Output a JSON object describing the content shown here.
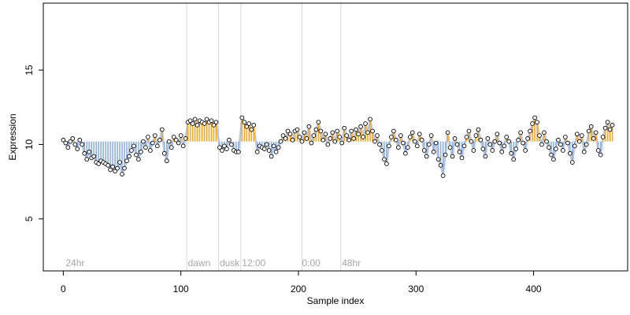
{
  "chart_data": {
    "type": "scatter",
    "title": "",
    "xlabel": "Sample index",
    "ylabel": "Expression",
    "xlim": [
      -17,
      480
    ],
    "ylim": [
      1.5,
      19.5
    ],
    "x_ticks": [
      0,
      100,
      200,
      300,
      400
    ],
    "y_ticks": [
      5,
      10,
      15
    ],
    "baseline": 10.2,
    "grid": false,
    "legend": "none",
    "annotations": [
      {
        "label": "24hr",
        "x": 2
      },
      {
        "label": "dawn",
        "x": 106
      },
      {
        "label": "dusk",
        "x": 133
      },
      {
        "label": "12:00",
        "x": 152
      },
      {
        "label": "0:00",
        "x": 203
      },
      {
        "label": "48hr",
        "x": 237
      }
    ],
    "vlines": [
      105,
      132,
      151,
      203,
      236
    ],
    "colors": {
      "above_baseline": "#f5a623",
      "below_baseline": "#8fb0e0",
      "fit_line": "#a9b6cc",
      "vline": "#d9d9d9",
      "point_edge": "#000000",
      "point_fill": "#ffffff"
    },
    "series": [
      {
        "values": [
          {
            "x": 0,
            "y": 10.3
          },
          {
            "x": 2,
            "y": 10.1
          },
          {
            "x": 4,
            "y": 9.8
          },
          {
            "x": 6,
            "y": 10.2
          },
          {
            "x": 8,
            "y": 10.4
          },
          {
            "x": 10,
            "y": 10.0
          },
          {
            "x": 12,
            "y": 9.7
          },
          {
            "x": 14,
            "y": 10.3
          },
          {
            "x": 16,
            "y": 10.0
          },
          {
            "x": 18,
            "y": 9.4
          },
          {
            "x": 20,
            "y": 9.0
          },
          {
            "x": 22,
            "y": 9.5
          },
          {
            "x": 24,
            "y": 9.1
          },
          {
            "x": 26,
            "y": 9.2
          },
          {
            "x": 28,
            "y": 8.8
          },
          {
            "x": 30,
            "y": 8.7
          },
          {
            "x": 32,
            "y": 8.9
          },
          {
            "x": 34,
            "y": 8.8
          },
          {
            "x": 36,
            "y": 8.7
          },
          {
            "x": 38,
            "y": 8.6
          },
          {
            "x": 40,
            "y": 8.3
          },
          {
            "x": 42,
            "y": 8.5
          },
          {
            "x": 44,
            "y": 8.2
          },
          {
            "x": 46,
            "y": 8.4
          },
          {
            "x": 48,
            "y": 8.8
          },
          {
            "x": 50,
            "y": 8.0
          },
          {
            "x": 52,
            "y": 8.4
          },
          {
            "x": 54,
            "y": 8.9
          },
          {
            "x": 56,
            "y": 9.2
          },
          {
            "x": 58,
            "y": 9.6
          },
          {
            "x": 60,
            "y": 9.9
          },
          {
            "x": 62,
            "y": 9.3
          },
          {
            "x": 64,
            "y": 9.0
          },
          {
            "x": 66,
            "y": 9.5
          },
          {
            "x": 68,
            "y": 10.2
          },
          {
            "x": 70,
            "y": 9.8
          },
          {
            "x": 72,
            "y": 10.5
          },
          {
            "x": 74,
            "y": 9.6
          },
          {
            "x": 76,
            "y": 10.1
          },
          {
            "x": 78,
            "y": 10.6
          },
          {
            "x": 80,
            "y": 9.9
          },
          {
            "x": 82,
            "y": 10.3
          },
          {
            "x": 84,
            "y": 11.0
          },
          {
            "x": 86,
            "y": 9.4
          },
          {
            "x": 88,
            "y": 8.9
          },
          {
            "x": 90,
            "y": 10.2
          },
          {
            "x": 92,
            "y": 9.8
          },
          {
            "x": 94,
            "y": 10.5
          },
          {
            "x": 96,
            "y": 10.3
          },
          {
            "x": 98,
            "y": 10.1
          },
          {
            "x": 100,
            "y": 10.6
          },
          {
            "x": 102,
            "y": 9.9
          },
          {
            "x": 104,
            "y": 10.4
          },
          {
            "x": 106,
            "y": 11.5
          },
          {
            "x": 108,
            "y": 11.6
          },
          {
            "x": 110,
            "y": 11.4
          },
          {
            "x": 112,
            "y": 11.7
          },
          {
            "x": 114,
            "y": 11.3
          },
          {
            "x": 116,
            "y": 11.6
          },
          {
            "x": 118,
            "y": 11.5
          },
          {
            "x": 120,
            "y": 11.4
          },
          {
            "x": 122,
            "y": 11.7
          },
          {
            "x": 124,
            "y": 11.5
          },
          {
            "x": 126,
            "y": 11.6
          },
          {
            "x": 128,
            "y": 11.3
          },
          {
            "x": 130,
            "y": 11.5
          },
          {
            "x": 133,
            "y": 9.8
          },
          {
            "x": 135,
            "y": 9.6
          },
          {
            "x": 137,
            "y": 9.9
          },
          {
            "x": 139,
            "y": 9.7
          },
          {
            "x": 141,
            "y": 10.3
          },
          {
            "x": 143,
            "y": 10.0
          },
          {
            "x": 145,
            "y": 9.6
          },
          {
            "x": 147,
            "y": 9.5
          },
          {
            "x": 149,
            "y": 9.5
          },
          {
            "x": 152,
            "y": 11.8
          },
          {
            "x": 154,
            "y": 11.5
          },
          {
            "x": 156,
            "y": 11.2
          },
          {
            "x": 158,
            "y": 11.4
          },
          {
            "x": 160,
            "y": 11.0
          },
          {
            "x": 162,
            "y": 11.3
          },
          {
            "x": 165,
            "y": 9.5
          },
          {
            "x": 167,
            "y": 9.9
          },
          {
            "x": 169,
            "y": 9.8
          },
          {
            "x": 171,
            "y": 9.7
          },
          {
            "x": 173,
            "y": 10.0
          },
          {
            "x": 175,
            "y": 9.6
          },
          {
            "x": 177,
            "y": 9.2
          },
          {
            "x": 179,
            "y": 9.9
          },
          {
            "x": 181,
            "y": 9.5
          },
          {
            "x": 183,
            "y": 9.8
          },
          {
            "x": 185,
            "y": 10.2
          },
          {
            "x": 187,
            "y": 10.6
          },
          {
            "x": 189,
            "y": 10.4
          },
          {
            "x": 191,
            "y": 10.9
          },
          {
            "x": 193,
            "y": 10.7
          },
          {
            "x": 195,
            "y": 10.3
          },
          {
            "x": 197,
            "y": 10.9
          },
          {
            "x": 199,
            "y": 11.0
          },
          {
            "x": 201,
            "y": 10.5
          },
          {
            "x": 203,
            "y": 10.2
          },
          {
            "x": 205,
            "y": 10.8
          },
          {
            "x": 207,
            "y": 10.4
          },
          {
            "x": 209,
            "y": 11.2
          },
          {
            "x": 211,
            "y": 10.1
          },
          {
            "x": 213,
            "y": 10.6
          },
          {
            "x": 215,
            "y": 11.0
          },
          {
            "x": 217,
            "y": 11.5
          },
          {
            "x": 219,
            "y": 10.9
          },
          {
            "x": 221,
            "y": 10.3
          },
          {
            "x": 223,
            "y": 10.7
          },
          {
            "x": 225,
            "y": 10.0
          },
          {
            "x": 227,
            "y": 10.4
          },
          {
            "x": 229,
            "y": 10.8
          },
          {
            "x": 231,
            "y": 10.2
          },
          {
            "x": 233,
            "y": 10.9
          },
          {
            "x": 235,
            "y": 10.5
          },
          {
            "x": 237,
            "y": 10.1
          },
          {
            "x": 239,
            "y": 11.1
          },
          {
            "x": 241,
            "y": 10.6
          },
          {
            "x": 243,
            "y": 10.3
          },
          {
            "x": 245,
            "y": 10.9
          },
          {
            "x": 247,
            "y": 10.4
          },
          {
            "x": 249,
            "y": 11.0
          },
          {
            "x": 251,
            "y": 10.7
          },
          {
            "x": 253,
            "y": 11.2
          },
          {
            "x": 255,
            "y": 10.5
          },
          {
            "x": 257,
            "y": 11.4
          },
          {
            "x": 259,
            "y": 10.8
          },
          {
            "x": 261,
            "y": 11.7
          },
          {
            "x": 263,
            "y": 10.9
          },
          {
            "x": 265,
            "y": 10.2
          },
          {
            "x": 267,
            "y": 10.6
          },
          {
            "x": 269,
            "y": 10.0
          },
          {
            "x": 271,
            "y": 9.6
          },
          {
            "x": 273,
            "y": 9.0
          },
          {
            "x": 275,
            "y": 8.7
          },
          {
            "x": 277,
            "y": 9.9
          },
          {
            "x": 279,
            "y": 10.5
          },
          {
            "x": 281,
            "y": 10.9
          },
          {
            "x": 283,
            "y": 10.3
          },
          {
            "x": 285,
            "y": 9.8
          },
          {
            "x": 287,
            "y": 10.6
          },
          {
            "x": 289,
            "y": 10.1
          },
          {
            "x": 291,
            "y": 9.4
          },
          {
            "x": 293,
            "y": 9.8
          },
          {
            "x": 295,
            "y": 10.5
          },
          {
            "x": 297,
            "y": 10.8
          },
          {
            "x": 299,
            "y": 10.2
          },
          {
            "x": 301,
            "y": 9.9
          },
          {
            "x": 303,
            "y": 10.7
          },
          {
            "x": 305,
            "y": 10.3
          },
          {
            "x": 307,
            "y": 9.6
          },
          {
            "x": 309,
            "y": 9.2
          },
          {
            "x": 311,
            "y": 10.0
          },
          {
            "x": 313,
            "y": 10.6
          },
          {
            "x": 315,
            "y": 9.5
          },
          {
            "x": 317,
            "y": 10.1
          },
          {
            "x": 319,
            "y": 9.0
          },
          {
            "x": 321,
            "y": 8.6
          },
          {
            "x": 323,
            "y": 7.9
          },
          {
            "x": 325,
            "y": 9.3
          },
          {
            "x": 327,
            "y": 10.8
          },
          {
            "x": 329,
            "y": 9.8
          },
          {
            "x": 331,
            "y": 9.2
          },
          {
            "x": 333,
            "y": 10.4
          },
          {
            "x": 335,
            "y": 10.0
          },
          {
            "x": 337,
            "y": 9.5
          },
          {
            "x": 339,
            "y": 9.1
          },
          {
            "x": 341,
            "y": 9.9
          },
          {
            "x": 343,
            "y": 10.5
          },
          {
            "x": 345,
            "y": 10.9
          },
          {
            "x": 347,
            "y": 10.2
          },
          {
            "x": 349,
            "y": 9.6
          },
          {
            "x": 351,
            "y": 10.6
          },
          {
            "x": 353,
            "y": 11.0
          },
          {
            "x": 355,
            "y": 10.3
          },
          {
            "x": 357,
            "y": 9.7
          },
          {
            "x": 359,
            "y": 9.2
          },
          {
            "x": 361,
            "y": 10.4
          },
          {
            "x": 363,
            "y": 10.0
          },
          {
            "x": 365,
            "y": 9.6
          },
          {
            "x": 367,
            "y": 10.2
          },
          {
            "x": 369,
            "y": 10.7
          },
          {
            "x": 371,
            "y": 10.1
          },
          {
            "x": 373,
            "y": 9.5
          },
          {
            "x": 375,
            "y": 9.9
          },
          {
            "x": 377,
            "y": 10.5
          },
          {
            "x": 379,
            "y": 10.2
          },
          {
            "x": 381,
            "y": 9.4
          },
          {
            "x": 383,
            "y": 9.0
          },
          {
            "x": 385,
            "y": 9.7
          },
          {
            "x": 387,
            "y": 10.3
          },
          {
            "x": 389,
            "y": 10.8
          },
          {
            "x": 391,
            "y": 10.1
          },
          {
            "x": 393,
            "y": 9.6
          },
          {
            "x": 395,
            "y": 10.4
          },
          {
            "x": 397,
            "y": 10.9
          },
          {
            "x": 399,
            "y": 11.4
          },
          {
            "x": 401,
            "y": 11.8
          },
          {
            "x": 403,
            "y": 11.5
          },
          {
            "x": 405,
            "y": 10.6
          },
          {
            "x": 407,
            "y": 10.0
          },
          {
            "x": 409,
            "y": 10.8
          },
          {
            "x": 411,
            "y": 10.2
          },
          {
            "x": 413,
            "y": 9.8
          },
          {
            "x": 415,
            "y": 9.3
          },
          {
            "x": 417,
            "y": 9.0
          },
          {
            "x": 419,
            "y": 9.7
          },
          {
            "x": 421,
            "y": 10.3
          },
          {
            "x": 423,
            "y": 10.0
          },
          {
            "x": 425,
            "y": 9.6
          },
          {
            "x": 427,
            "y": 10.5
          },
          {
            "x": 429,
            "y": 10.1
          },
          {
            "x": 431,
            "y": 9.4
          },
          {
            "x": 433,
            "y": 8.8
          },
          {
            "x": 435,
            "y": 9.9
          },
          {
            "x": 437,
            "y": 10.7
          },
          {
            "x": 439,
            "y": 10.2
          },
          {
            "x": 441,
            "y": 10.6
          },
          {
            "x": 443,
            "y": 9.5
          },
          {
            "x": 445,
            "y": 10.0
          },
          {
            "x": 447,
            "y": 10.9
          },
          {
            "x": 449,
            "y": 11.2
          },
          {
            "x": 451,
            "y": 10.4
          },
          {
            "x": 453,
            "y": 10.8
          },
          {
            "x": 455,
            "y": 9.6
          },
          {
            "x": 457,
            "y": 9.3
          },
          {
            "x": 459,
            "y": 10.5
          },
          {
            "x": 461,
            "y": 11.1
          },
          {
            "x": 463,
            "y": 11.5
          },
          {
            "x": 465,
            "y": 11.0
          },
          {
            "x": 467,
            "y": 11.3
          }
        ]
      }
    ]
  }
}
